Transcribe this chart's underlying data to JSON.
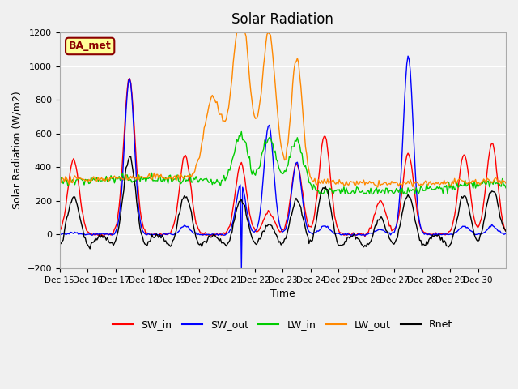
{
  "title": "Solar Radiation",
  "ylabel": "Solar Radiation (W/m2)",
  "xlabel": "Time",
  "ylim": [
    -200,
    1200
  ],
  "plot_bg_color": "#f0f0f0",
  "annotation_text": "BA_met",
  "annotation_color": "#8b0000",
  "annotation_bg": "#ffff99",
  "series_colors": {
    "SW_in": "#ff0000",
    "SW_out": "#0000ff",
    "LW_in": "#00cc00",
    "LW_out": "#ff8800",
    "Rnet": "#000000"
  },
  "tick_labels": [
    "Dec 15",
    "Dec 16",
    "Dec 17",
    "Dec 18",
    "Dec 19",
    "Dec 20",
    "Dec 21",
    "Dec 22",
    "Dec 23",
    "Dec 24",
    "Dec 25",
    "Dec 26",
    "Dec 27",
    "Dec 28",
    "Dec 29",
    "Dec 30"
  ],
  "yticks": [
    -200,
    0,
    200,
    400,
    600,
    800,
    1000,
    1200
  ]
}
